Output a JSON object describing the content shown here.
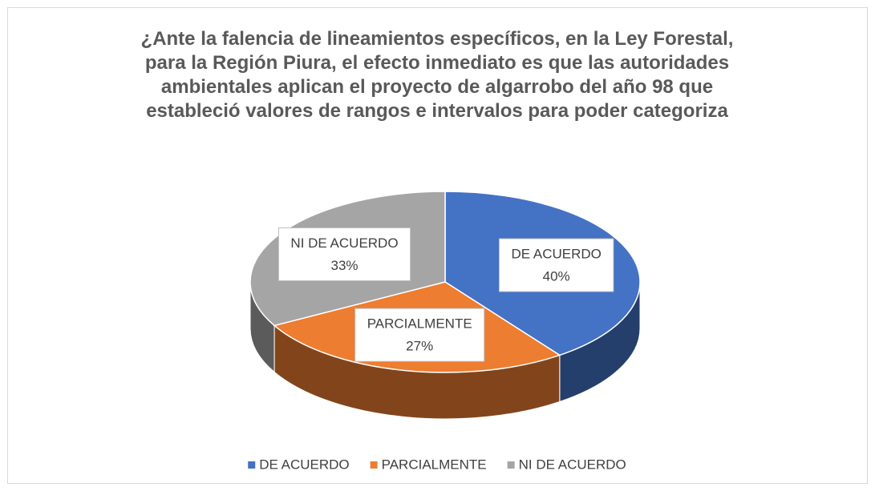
{
  "chart_data": {
    "type": "pie",
    "title": "¿Ante la falencia de lineamientos específicos, en la Ley Forestal, para la Región Piura, el efecto inmediato es que las autoridades ambientales aplican el proyecto de algarrobo del año 98 que estableció valores de rangos e intervalos para poder categoriza",
    "categories": [
      "DE ACUERDO",
      "PARCIALMENTE",
      "NI DE ACUERDO"
    ],
    "values": [
      40,
      27,
      33
    ],
    "value_labels": [
      "40%",
      "27%",
      "33%"
    ],
    "colors": [
      "#4472c4",
      "#ed7d31",
      "#a5a5a5"
    ],
    "legend": "bottom"
  }
}
